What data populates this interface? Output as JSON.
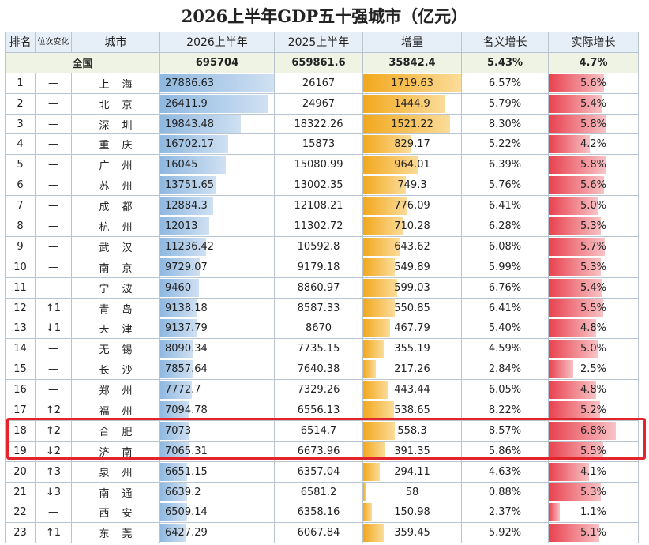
{
  "title": "2026上半年GDP五十强城市（亿元）",
  "headers": {
    "rank": "排名",
    "change": "位次变化",
    "city": "城市",
    "h1_2026": "2026上半年",
    "h1_2025": "2025上半年",
    "increase": "增量",
    "nominal_growth": "名义增长",
    "real_growth": "实际增长"
  },
  "total": {
    "label": "全国",
    "h1_2026": "695704",
    "h1_2025": "659861.6",
    "increase": "35842.4",
    "nominal_growth": "5.43%",
    "real_growth": "4.7%"
  },
  "colors": {
    "current_bar": "#8fb8e0",
    "increase_bar": "#f2a81d",
    "real_bar": "#e8414e",
    "highlight": "#e3242b"
  },
  "chart_data": {
    "type": "table",
    "title": "2026上半年GDP五十强城市（亿元）",
    "highlighted_ranks": [
      "18",
      "19"
    ],
    "rows": [
      {
        "rank": "1",
        "change": "—",
        "city": "上海",
        "h1_2026": "27886.63",
        "h1_2025": "26167",
        "increase": "1719.63",
        "nominal": "6.57%",
        "real": "5.6%"
      },
      {
        "rank": "2",
        "change": "—",
        "city": "北京",
        "h1_2026": "26411.9",
        "h1_2025": "24967",
        "increase": "1444.9",
        "nominal": "5.79%",
        "real": "5.4%"
      },
      {
        "rank": "3",
        "change": "—",
        "city": "深圳",
        "h1_2026": "19843.48",
        "h1_2025": "18322.26",
        "increase": "1521.22",
        "nominal": "8.30%",
        "real": "5.8%"
      },
      {
        "rank": "4",
        "change": "—",
        "city": "重庆",
        "h1_2026": "16702.17",
        "h1_2025": "15873",
        "increase": "829.17",
        "nominal": "5.22%",
        "real": "4.2%"
      },
      {
        "rank": "5",
        "change": "—",
        "city": "广州",
        "h1_2026": "16045",
        "h1_2025": "15080.99",
        "increase": "964.01",
        "nominal": "6.39%",
        "real": "5.8%"
      },
      {
        "rank": "6",
        "change": "—",
        "city": "苏州",
        "h1_2026": "13751.65",
        "h1_2025": "13002.35",
        "increase": "749.3",
        "nominal": "5.76%",
        "real": "5.6%"
      },
      {
        "rank": "7",
        "change": "—",
        "city": "成都",
        "h1_2026": "12884.3",
        "h1_2025": "12108.21",
        "increase": "776.09",
        "nominal": "6.41%",
        "real": "5.0%"
      },
      {
        "rank": "8",
        "change": "—",
        "city": "杭州",
        "h1_2026": "12013",
        "h1_2025": "11302.72",
        "increase": "710.28",
        "nominal": "6.28%",
        "real": "5.3%"
      },
      {
        "rank": "9",
        "change": "—",
        "city": "武汉",
        "h1_2026": "11236.42",
        "h1_2025": "10592.8",
        "increase": "643.62",
        "nominal": "6.08%",
        "real": "5.7%"
      },
      {
        "rank": "10",
        "change": "—",
        "city": "南京",
        "h1_2026": "9729.07",
        "h1_2025": "9179.18",
        "increase": "549.89",
        "nominal": "5.99%",
        "real": "5.3%"
      },
      {
        "rank": "11",
        "change": "—",
        "city": "宁波",
        "h1_2026": "9460",
        "h1_2025": "8860.97",
        "increase": "599.03",
        "nominal": "6.76%",
        "real": "5.4%"
      },
      {
        "rank": "12",
        "change": "↑1",
        "city": "青岛",
        "h1_2026": "9138.18",
        "h1_2025": "8587.33",
        "increase": "550.85",
        "nominal": "6.41%",
        "real": "5.5%"
      },
      {
        "rank": "13",
        "change": "↓1",
        "city": "天津",
        "h1_2026": "9137.79",
        "h1_2025": "8670",
        "increase": "467.79",
        "nominal": "5.40%",
        "real": "4.8%"
      },
      {
        "rank": "14",
        "change": "—",
        "city": "无锡",
        "h1_2026": "8090.34",
        "h1_2025": "7735.15",
        "increase": "355.19",
        "nominal": "4.59%",
        "real": "5.0%"
      },
      {
        "rank": "15",
        "change": "—",
        "city": "长沙",
        "h1_2026": "7857.64",
        "h1_2025": "7640.38",
        "increase": "217.26",
        "nominal": "2.84%",
        "real": "2.5%"
      },
      {
        "rank": "16",
        "change": "—",
        "city": "郑州",
        "h1_2026": "7772.7",
        "h1_2025": "7329.26",
        "increase": "443.44",
        "nominal": "6.05%",
        "real": "4.8%"
      },
      {
        "rank": "17",
        "change": "↑2",
        "city": "福州",
        "h1_2026": "7094.78",
        "h1_2025": "6556.13",
        "increase": "538.65",
        "nominal": "8.22%",
        "real": "5.2%"
      },
      {
        "rank": "18",
        "change": "↑2",
        "city": "合肥",
        "h1_2026": "7073",
        "h1_2025": "6514.7",
        "increase": "558.3",
        "nominal": "8.57%",
        "real": "6.8%"
      },
      {
        "rank": "19",
        "change": "↓2",
        "city": "济南",
        "h1_2026": "7065.31",
        "h1_2025": "6673.96",
        "increase": "391.35",
        "nominal": "5.86%",
        "real": "5.5%"
      },
      {
        "rank": "20",
        "change": "↑3",
        "city": "泉州",
        "h1_2026": "6651.15",
        "h1_2025": "6357.04",
        "increase": "294.11",
        "nominal": "4.63%",
        "real": "4.1%"
      },
      {
        "rank": "21",
        "change": "↓3",
        "city": "南通",
        "h1_2026": "6639.2",
        "h1_2025": "6581.2",
        "increase": "58",
        "nominal": "0.88%",
        "real": "5.3%"
      },
      {
        "rank": "22",
        "change": "—",
        "city": "西安",
        "h1_2026": "6509.14",
        "h1_2025": "6358.16",
        "increase": "150.98",
        "nominal": "2.37%",
        "real": "1.1%"
      },
      {
        "rank": "23",
        "change": "↑1",
        "city": "东莞",
        "h1_2026": "6427.29",
        "h1_2025": "6067.84",
        "increase": "359.45",
        "nominal": "5.92%",
        "real": "5.1%"
      }
    ]
  }
}
